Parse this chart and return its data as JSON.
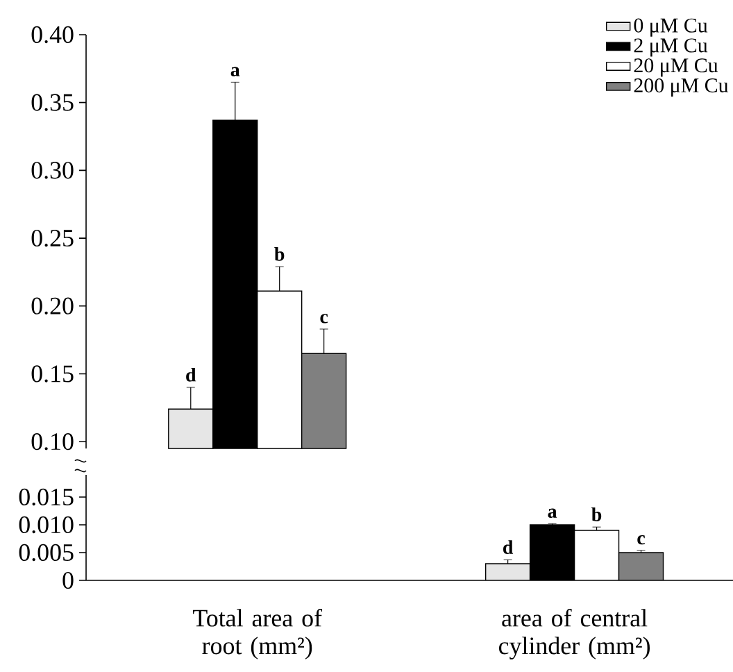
{
  "chart_data": [
    {
      "type": "bar",
      "categories": [
        null
      ],
      "series": [
        {
          "name": "0 μM Cu",
          "color": "#e6e6e6",
          "values": [
            0.124
          ],
          "errors": [
            0.016
          ],
          "value_labels": [
            "d"
          ]
        },
        {
          "name": "2 μM Cu",
          "color": "#000000",
          "values": [
            0.337
          ],
          "errors": [
            0.028
          ],
          "value_labels": [
            "a"
          ]
        },
        {
          "name": "20 μM Cu",
          "color": "#ffffff",
          "values": [
            0.211
          ],
          "errors": [
            0.018
          ],
          "value_labels": [
            "b"
          ]
        },
        {
          "name": "200 μM Cu",
          "color": "#808080",
          "values": [
            0.165
          ],
          "errors": [
            0.018
          ],
          "value_labels": [
            "c"
          ]
        }
      ],
      "ylim": [
        0.095,
        0.4
      ],
      "yticks": [
        {
          "value": 0.1,
          "label": "0.10"
        },
        {
          "value": 0.15,
          "label": "0.15"
        },
        {
          "value": 0.2,
          "label": "0.20"
        },
        {
          "value": 0.25,
          "label": "0.25"
        },
        {
          "value": 0.3,
          "label": "0.30"
        },
        {
          "value": 0.35,
          "label": "0.35"
        },
        {
          "value": 0.4,
          "label": "0.40"
        }
      ],
      "tick_labels": "y",
      "grid": false,
      "legend": "top right"
    },
    {
      "type": "bar",
      "categories": [
        "Total  area of root (mm²)",
        "area of central cylinder (mm²)"
      ],
      "series": [
        {
          "color": "#e6e6e6",
          "values": [
            null,
            0.003
          ],
          "errors": [
            null,
            0.0007
          ],
          "value_labels": [
            null,
            "d"
          ]
        },
        {
          "color": "#000000",
          "values": [
            null,
            0.01
          ],
          "errors": [
            null,
            0.0002
          ],
          "value_labels": [
            null,
            "a"
          ]
        },
        {
          "color": "#ffffff",
          "values": [
            null,
            0.009
          ],
          "errors": [
            null,
            0.0006
          ],
          "value_labels": [
            null,
            "b"
          ]
        },
        {
          "color": "#808080",
          "values": [
            null,
            0.005
          ],
          "errors": [
            null,
            0.0004
          ],
          "value_labels": [
            null,
            "c"
          ]
        }
      ],
      "ylim": [
        0,
        0.019
      ],
      "yticks": [
        0,
        {
          "value": 0.005,
          "label": "0.005"
        },
        {
          "value": 0.01,
          "label": "0.010"
        },
        {
          "value": 0.015,
          "label": "0.015"
        }
      ],
      "grid": false
    }
  ]
}
